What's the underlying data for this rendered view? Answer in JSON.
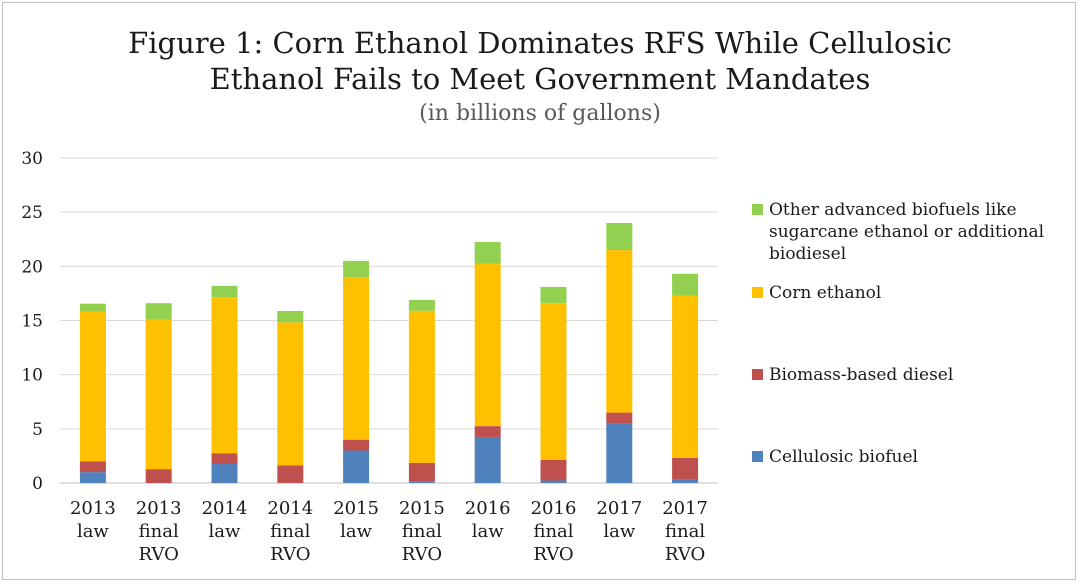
{
  "chart_data": {
    "type": "bar",
    "stacked": true,
    "title_line1": "Figure 1:  Corn Ethanol Dominates RFS While Cellulosic",
    "title_line2": "Ethanol Fails to Meet Government Mandates",
    "subtitle": "(in billions of gallons)",
    "xlabel": "",
    "ylabel": "",
    "ylim": [
      0,
      30
    ],
    "yticks": [
      0,
      5,
      10,
      15,
      20,
      25,
      30
    ],
    "grid": true,
    "legend_position": "right",
    "categories": [
      [
        "2013",
        "law"
      ],
      [
        "2013",
        "final",
        "RVO"
      ],
      [
        "2014",
        "law"
      ],
      [
        "2014",
        "final",
        "RVO"
      ],
      [
        "2015",
        "law"
      ],
      [
        "2015",
        "final",
        "RVO"
      ],
      [
        "2016",
        "law"
      ],
      [
        "2016",
        "final",
        "RVO"
      ],
      [
        "2017",
        "law"
      ],
      [
        "2017",
        "final",
        "RVO"
      ]
    ],
    "series": [
      {
        "name": "Cellulosic biofuel",
        "color": "#4f81bd",
        "values": [
          1.0,
          0.0,
          1.75,
          0.0,
          3.0,
          0.12,
          4.25,
          0.23,
          5.5,
          0.31
        ]
      },
      {
        "name": "Biomass-based diesel",
        "color": "#c0504d",
        "values": [
          1.0,
          1.28,
          1.0,
          1.63,
          1.0,
          1.73,
          1.0,
          1.9,
          1.0,
          2.0
        ]
      },
      {
        "name": "Corn ethanol",
        "color": "#ffc000",
        "values": [
          13.8,
          13.82,
          14.4,
          13.2,
          15.0,
          14.05,
          15.0,
          14.47,
          15.0,
          15.0
        ]
      },
      {
        "name": "Other advanced biofuels like sugarcane ethanol or additional biodiesel",
        "color": "#92d050",
        "values": [
          0.75,
          1.5,
          1.05,
          1.05,
          1.5,
          1.0,
          2.0,
          1.5,
          2.5,
          2.0
        ]
      }
    ]
  },
  "legend": {
    "order": [
      3,
      2,
      1,
      0
    ]
  }
}
